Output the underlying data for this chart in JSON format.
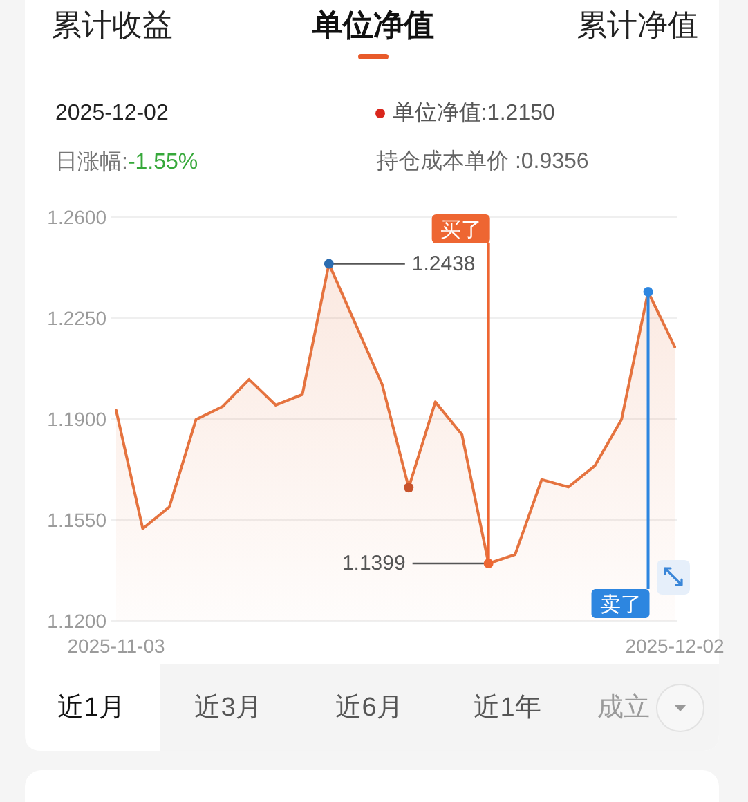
{
  "chart_data": {
    "type": "area",
    "title": "单位净值",
    "categories": [
      "2025-11-03",
      null,
      null,
      null,
      null,
      null,
      null,
      null,
      null,
      null,
      null,
      null,
      null,
      null,
      null,
      null,
      null,
      null,
      null,
      null,
      null,
      "2025-12-02"
    ],
    "series": [
      {
        "color": "#e5733f",
        "values": [
          1.193,
          1.152,
          1.1595,
          1.1898,
          1.1943,
          1.2037,
          1.1948,
          1.1985,
          1.2438,
          1.2229,
          1.202,
          1.1662,
          1.1959,
          1.1846,
          1.1399,
          1.143,
          1.169,
          1.1664,
          1.1738,
          1.1898,
          1.2341,
          1.215
        ]
      },
      {
        "type": "scatter",
        "marker": "circle",
        "colors": [
          null,
          null,
          null,
          null,
          null,
          null,
          null,
          null,
          "#2b6cb0",
          null,
          null,
          "#c8532c",
          null,
          null,
          null,
          null,
          null,
          null,
          null,
          null,
          null,
          null
        ],
        "values": [
          null,
          null,
          null,
          null,
          null,
          null,
          null,
          null,
          1.2438,
          null,
          null,
          1.1662,
          null,
          null,
          null,
          null,
          null,
          null,
          null,
          null,
          null,
          null
        ],
        "value_labels": [
          null,
          null,
          null,
          null,
          null,
          null,
          null,
          null,
          "1.2438",
          null,
          null,
          null,
          null,
          null,
          null,
          null,
          null,
          null,
          null,
          null,
          null,
          null
        ]
      },
      {
        "type": "scatter",
        "name": "买了",
        "marker": "circle",
        "color": "#ee6632",
        "values": [
          null,
          null,
          null,
          null,
          null,
          null,
          null,
          null,
          null,
          null,
          null,
          null,
          null,
          null,
          1.1399,
          null,
          null,
          null,
          null,
          null,
          null,
          null
        ],
        "value_labels": [
          null,
          null,
          null,
          null,
          null,
          null,
          null,
          null,
          null,
          null,
          null,
          null,
          null,
          null,
          "1.1399",
          null,
          null,
          null,
          null,
          null,
          null,
          null
        ]
      },
      {
        "type": "scatter",
        "name": "卖了",
        "marker": "circle",
        "color": "#2d86e0",
        "values": [
          null,
          null,
          null,
          null,
          null,
          null,
          null,
          null,
          null,
          null,
          null,
          null,
          null,
          null,
          null,
          null,
          null,
          null,
          null,
          null,
          1.2341,
          null
        ]
      }
    ],
    "ylim": [
      1.12,
      1.26
    ],
    "yticks": [
      {
        "value": 1.12,
        "label": "1.1200"
      },
      {
        "value": 1.155,
        "label": "1.1550"
      },
      {
        "value": 1.19,
        "label": "1.1900"
      },
      {
        "value": 1.225,
        "label": "1.2250"
      },
      {
        "value": 1.26,
        "label": "1.2600"
      }
    ],
    "grid": "y",
    "annotations": [
      "累计收益",
      "累计净值",
      "2025-12-02",
      "单位净值:1.2150",
      "日涨幅:-1.55%",
      "持仓成本单价 :0.9356",
      "近1月",
      "近3月",
      "近6月",
      "近1年",
      "成立"
    ]
  }
}
